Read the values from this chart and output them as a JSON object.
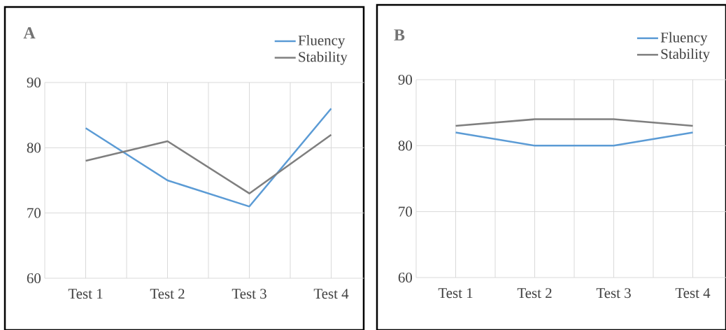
{
  "chart_data": [
    {
      "type": "line",
      "title": "A",
      "categories": [
        "Test 1",
        "Test 2",
        "Test 3",
        "Test 4"
      ],
      "series": [
        {
          "name": "Fluency",
          "color": "#5b9bd5",
          "values": [
            83,
            75,
            71,
            86
          ]
        },
        {
          "name": "Stability",
          "color": "#7f7f7f",
          "values": [
            78,
            81,
            73,
            82
          ]
        }
      ],
      "ylim": [
        60,
        90
      ],
      "yticks": [
        60,
        70,
        80,
        90
      ],
      "grid": true,
      "legend": "top right"
    },
    {
      "type": "line",
      "title": "B",
      "categories": [
        "Test 1",
        "Test 2",
        "Test 3",
        "Test 4"
      ],
      "series": [
        {
          "name": "Fluency",
          "color": "#5b9bd5",
          "values": [
            82,
            80,
            80,
            82
          ]
        },
        {
          "name": "Stability",
          "color": "#7f7f7f",
          "values": [
            83,
            84,
            84,
            83
          ]
        }
      ],
      "ylim": [
        60,
        90
      ],
      "yticks": [
        60,
        70,
        80,
        90
      ],
      "grid": true,
      "legend": "top right"
    }
  ]
}
